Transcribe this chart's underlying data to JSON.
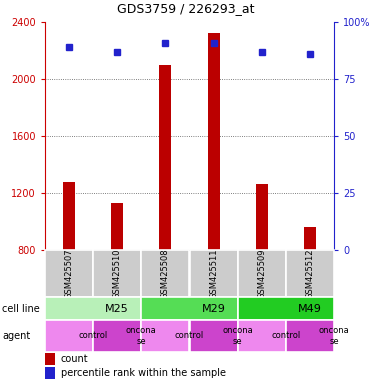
{
  "title": "GDS3759 / 226293_at",
  "samples": [
    "GSM425507",
    "GSM425510",
    "GSM425508",
    "GSM425511",
    "GSM425509",
    "GSM425512"
  ],
  "counts": [
    1280,
    1130,
    2100,
    2320,
    1260,
    960
  ],
  "percentiles": [
    89,
    87,
    91,
    91,
    87,
    86
  ],
  "cell_lines": [
    {
      "label": "M25",
      "span": [
        0,
        2
      ],
      "color": "#b8f0b8"
    },
    {
      "label": "M29",
      "span": [
        2,
        4
      ],
      "color": "#55dd55"
    },
    {
      "label": "M49",
      "span": [
        4,
        6
      ],
      "color": "#22cc22"
    }
  ],
  "agents": [
    {
      "label": "control",
      "span": [
        0,
        1
      ],
      "color": "#ee88ee"
    },
    {
      "label": "oncona\nse",
      "span": [
        1,
        2
      ],
      "color": "#cc44cc"
    },
    {
      "label": "control",
      "span": [
        2,
        3
      ],
      "color": "#ee88ee"
    },
    {
      "label": "oncona\nse",
      "span": [
        3,
        4
      ],
      "color": "#cc44cc"
    },
    {
      "label": "control",
      "span": [
        4,
        5
      ],
      "color": "#ee88ee"
    },
    {
      "label": "oncona\nse",
      "span": [
        5,
        6
      ],
      "color": "#cc44cc"
    }
  ],
  "bar_color": "#bb0000",
  "dot_color": "#2222cc",
  "ylim_left": [
    800,
    2400
  ],
  "ylim_right": [
    0,
    100
  ],
  "yticks_left": [
    800,
    1200,
    1600,
    2000,
    2400
  ],
  "yticks_right": [
    0,
    25,
    50,
    75,
    100
  ],
  "label_color_left": "#cc0000",
  "label_color_right": "#2222cc",
  "grid_color": "#555555",
  "bar_width": 0.25,
  "sample_row_color": "#cccccc",
  "cell_line_label": "cell line",
  "agent_label": "agent",
  "fig_width": 3.71,
  "fig_height": 3.84,
  "title_fontsize": 9,
  "tick_fontsize": 7,
  "sample_fontsize": 6,
  "legend_fontsize": 7,
  "row_label_fontsize": 7,
  "cellline_fontsize": 8
}
